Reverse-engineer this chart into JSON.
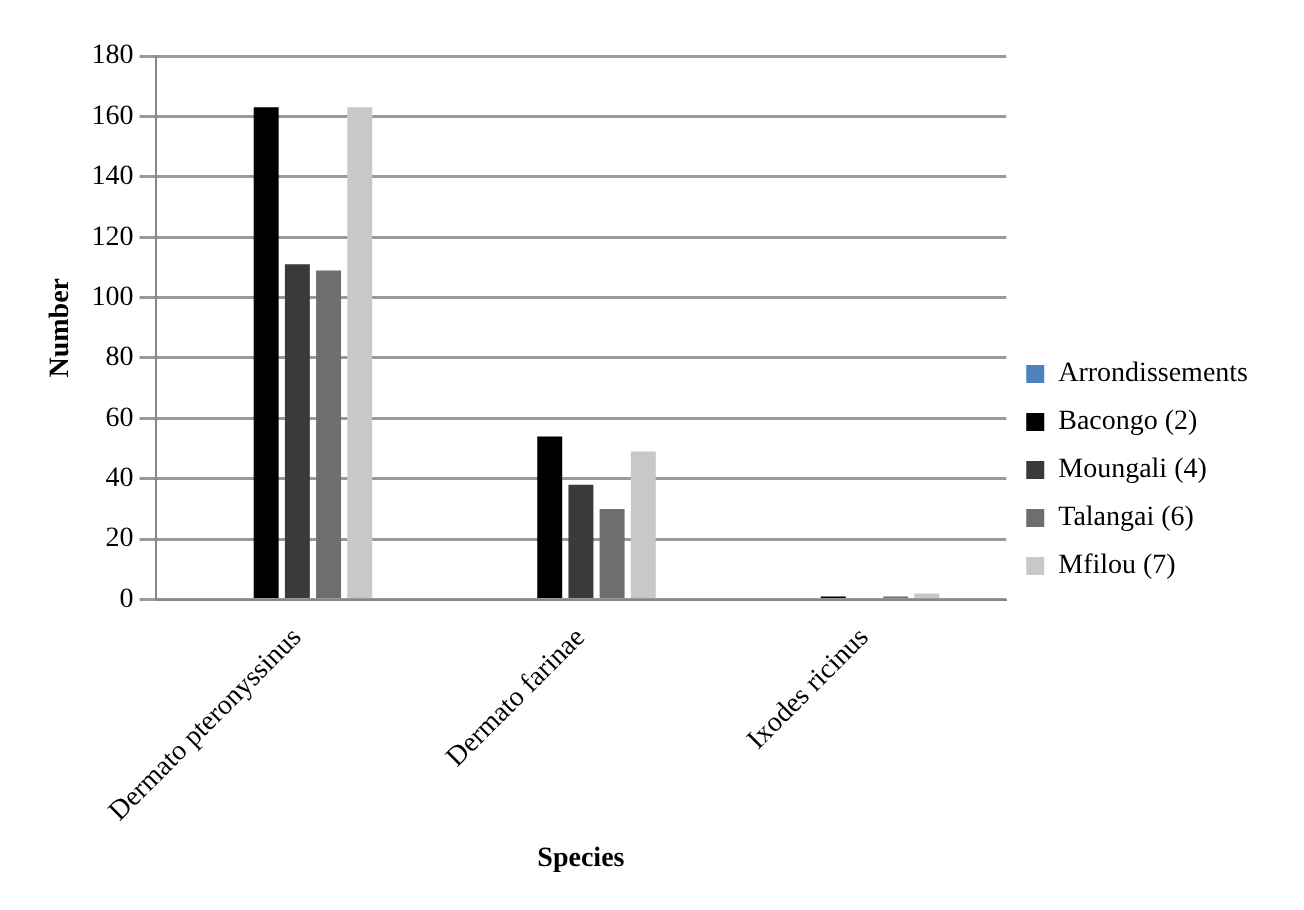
{
  "chart_data": {
    "type": "bar",
    "xlabel": "Species",
    "ylabel": "Number",
    "categories": [
      "Dermato pteronyssinus",
      "Dermato farinae",
      "Ixodes ricinus"
    ],
    "series": [
      {
        "name": "Arrondissements",
        "color": "#4f81bd",
        "values": [
          0,
          0,
          0
        ]
      },
      {
        "name": "Bacongo (2)",
        "color": "#000000",
        "values": [
          163,
          54,
          1
        ]
      },
      {
        "name": "Moungali (4)",
        "color": "#3a3a3a",
        "values": [
          111,
          38,
          0.5
        ]
      },
      {
        "name": "Talangai (6)",
        "color": "#6e6e6e",
        "values": [
          109,
          30,
          1
        ]
      },
      {
        "name": "Mfilou (7)",
        "color": "#c8c8c8",
        "values": [
          163,
          49,
          2
        ]
      }
    ],
    "ylim": [
      0,
      180
    ],
    "yticks": [
      0,
      20,
      40,
      60,
      80,
      100,
      120,
      140,
      160,
      180
    ],
    "grid": "y",
    "legend": "right"
  }
}
